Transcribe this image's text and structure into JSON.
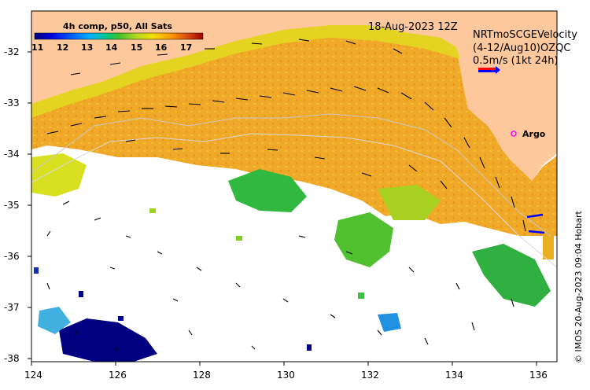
{
  "colorbar": {
    "title": "4h comp, p50, All Sats",
    "ticks": [
      "11",
      "12",
      "13",
      "14",
      "15",
      "16",
      "17"
    ],
    "colors": [
      "#000080",
      "#0000d0",
      "#0050ff",
      "#00a0ff",
      "#00d0c0",
      "#30c060",
      "#80d020",
      "#d0e000",
      "#ffc000",
      "#ff8000",
      "#e04000",
      "#a00000"
    ]
  },
  "header": {
    "datetime": "18-Aug-2023 12Z",
    "velocity_line1": "NRTmoSCGEVelocity",
    "velocity_line2": "(4-12/Aug10)OZQC",
    "velocity_scale": "0.5m/s (1kt 24h)"
  },
  "argo": {
    "label": "Argo",
    "lon": 135.5,
    "lat": -33.6
  },
  "axes": {
    "x_ticks": [
      "124",
      "126",
      "128",
      "130",
      "132",
      "134",
      "136"
    ],
    "y_ticks": [
      "-32",
      "-33",
      "-34",
      "-35",
      "-36",
      "-37",
      "-38"
    ],
    "xlim": [
      124,
      136.5
    ],
    "ylim": [
      -38.1,
      -31.3
    ]
  },
  "credit": "© IMOS 20-Aug-2023 09:04 Hobart",
  "colors": {
    "land": "#fcc89c",
    "sea_none": "#ffffff",
    "warm": "#f0a020",
    "mid": "#e0d020",
    "cool": "#40c030",
    "cold": "#000080",
    "arrow": "#000000",
    "argo": "#ff00ff",
    "scale_red": "#ff0000",
    "scale_blue": "#0000ff"
  },
  "icons": {
    "argo_marker": "circle-marker-icon",
    "scale_arrow": "arrow-right-icon"
  }
}
